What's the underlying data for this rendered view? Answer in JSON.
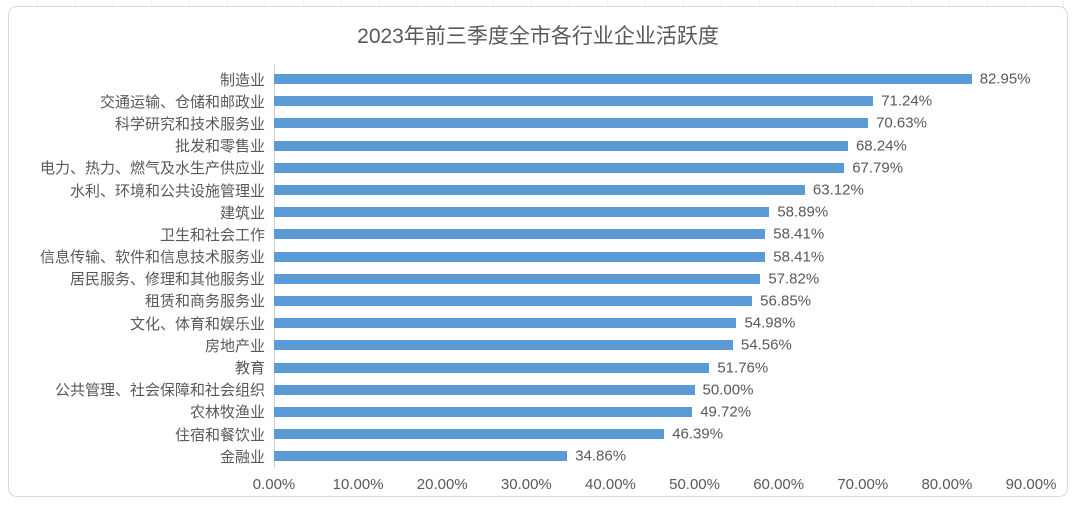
{
  "chart_data": {
    "type": "bar",
    "orientation": "horizontal",
    "title": "2023年前三季度全市各行业企业活跃度",
    "categories": [
      "制造业",
      "交通运输、仓储和邮政业",
      "科学研究和技术服务业",
      "批发和零售业",
      "电力、热力、燃气及水生产供应业",
      "水利、环境和公共设施管理业",
      "建筑业",
      "卫生和社会工作",
      "信息传输、软件和信息技术服务业",
      "居民服务、修理和其他服务业",
      "租赁和商务服务业",
      "文化、体育和娱乐业",
      "房地产业",
      "教育",
      "公共管理、社会保障和社会组织",
      "农林牧渔业",
      "住宿和餐饮业",
      "金融业"
    ],
    "values": [
      82.95,
      71.24,
      70.63,
      68.24,
      67.79,
      63.12,
      58.89,
      58.41,
      58.41,
      57.82,
      56.85,
      54.98,
      54.56,
      51.76,
      50.0,
      49.72,
      46.39,
      34.86
    ],
    "value_labels": [
      "82.95%",
      "71.24%",
      "70.63%",
      "68.24%",
      "67.79%",
      "63.12%",
      "58.89%",
      "58.41%",
      "58.41%",
      "57.82%",
      "56.85%",
      "54.98%",
      "54.56%",
      "51.76%",
      "50.00%",
      "49.72%",
      "46.39%",
      "34.86%"
    ],
    "x_ticks": [
      "0.00%",
      "10.00%",
      "20.00%",
      "30.00%",
      "40.00%",
      "50.00%",
      "60.00%",
      "70.00%",
      "80.00%",
      "90.00%"
    ],
    "xlim": [
      0,
      90
    ],
    "xlabel": "",
    "ylabel": "",
    "grid": "off",
    "legend_position": "none",
    "bar_color": "#5B9BD5",
    "text_color": "#595959",
    "axis_line_color": "#D0D0D0",
    "border_color": "#D9D9D9"
  }
}
